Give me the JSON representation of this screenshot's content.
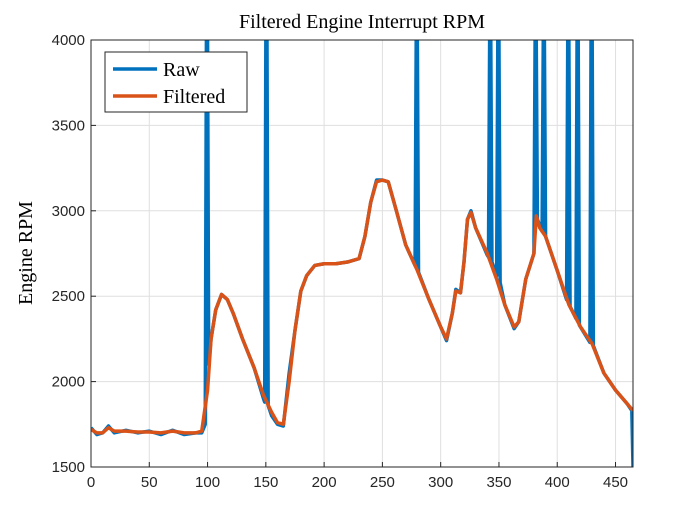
{
  "chart_data": {
    "type": "line",
    "title": "Filtered Engine Interrupt RPM",
    "ylabel": "Engine RPM",
    "xlim": [
      0,
      465
    ],
    "xticks": [
      0,
      50,
      100,
      150,
      200,
      250,
      300,
      350,
      400,
      450
    ],
    "ylim": [
      1500,
      4000
    ],
    "yticks": [
      1500,
      2000,
      2500,
      3000,
      3500,
      4000
    ],
    "grid": true,
    "legend": "upper left",
    "series": [
      {
        "name": "Raw",
        "color": "#0072bd",
        "x": [
          0,
          5,
          10,
          15,
          20,
          30,
          40,
          50,
          60,
          70,
          80,
          90,
          95,
          98,
          99,
          100,
          101,
          103,
          107,
          112,
          117,
          122,
          130,
          140,
          148,
          149,
          150,
          151,
          152,
          155,
          160,
          165,
          170,
          175,
          180,
          185,
          192,
          200,
          210,
          220,
          230,
          235,
          240,
          245,
          250,
          255,
          262,
          270,
          278,
          279,
          280,
          281,
          290,
          300,
          305,
          310,
          313,
          317,
          320,
          323,
          326,
          330,
          340,
          341,
          342,
          343,
          344,
          348,
          349,
          350,
          351,
          355,
          363,
          367,
          373,
          380,
          381,
          382,
          383,
          387,
          388,
          389,
          390,
          400,
          408,
          409,
          410,
          411,
          416,
          417,
          418,
          419,
          428,
          429,
          430,
          431,
          440,
          450,
          460,
          464,
          465
        ],
        "values": [
          1730,
          1690,
          1700,
          1740,
          1700,
          1715,
          1700,
          1710,
          1690,
          1715,
          1690,
          1700,
          1700,
          1750,
          4000,
          4000,
          2100,
          2250,
          2420,
          2510,
          2480,
          2400,
          2250,
          2080,
          1900,
          1880,
          4000,
          4000,
          1860,
          1800,
          1750,
          1740,
          2050,
          2300,
          2530,
          2620,
          2680,
          2690,
          2690,
          2700,
          2720,
          2850,
          3050,
          3180,
          3180,
          3170,
          3000,
          2800,
          2680,
          4000,
          4000,
          2640,
          2480,
          2320,
          2240,
          2400,
          2540,
          2520,
          2700,
          2950,
          3000,
          2900,
          2740,
          2730,
          4000,
          4000,
          2700,
          2620,
          4000,
          4000,
          2580,
          2450,
          2310,
          2350,
          2600,
          2750,
          4000,
          4000,
          2950,
          2880,
          4000,
          4000,
          2850,
          2650,
          2480,
          4000,
          4000,
          2440,
          2370,
          4000,
          4000,
          2330,
          2230,
          4000,
          4000,
          2210,
          2050,
          1950,
          1870,
          1830,
          1500
        ]
      },
      {
        "name": "Filtered",
        "color": "#d95319",
        "x": [
          0,
          5,
          10,
          15,
          20,
          30,
          40,
          50,
          60,
          70,
          80,
          90,
          95,
          100,
          103,
          107,
          112,
          117,
          122,
          130,
          140,
          148,
          155,
          160,
          165,
          170,
          175,
          180,
          185,
          192,
          200,
          210,
          220,
          230,
          235,
          240,
          245,
          250,
          255,
          262,
          270,
          280,
          290,
          300,
          305,
          310,
          313,
          317,
          320,
          323,
          326,
          330,
          340,
          348,
          355,
          363,
          367,
          373,
          380,
          382,
          385,
          390,
          400,
          410,
          420,
          430,
          440,
          450,
          460,
          465
        ],
        "values": [
          1720,
          1700,
          1700,
          1730,
          1710,
          1710,
          1705,
          1705,
          1700,
          1710,
          1700,
          1700,
          1710,
          1950,
          2250,
          2420,
          2510,
          2480,
          2400,
          2250,
          2080,
          1920,
          1820,
          1760,
          1750,
          2000,
          2300,
          2530,
          2620,
          2680,
          2690,
          2690,
          2700,
          2720,
          2850,
          3050,
          3170,
          3180,
          3170,
          3000,
          2800,
          2650,
          2480,
          2320,
          2250,
          2400,
          2530,
          2520,
          2700,
          2950,
          2990,
          2900,
          2750,
          2600,
          2450,
          2320,
          2350,
          2600,
          2750,
          2970,
          2900,
          2850,
          2650,
          2450,
          2320,
          2220,
          2050,
          1950,
          1870,
          1830
        ]
      }
    ]
  }
}
